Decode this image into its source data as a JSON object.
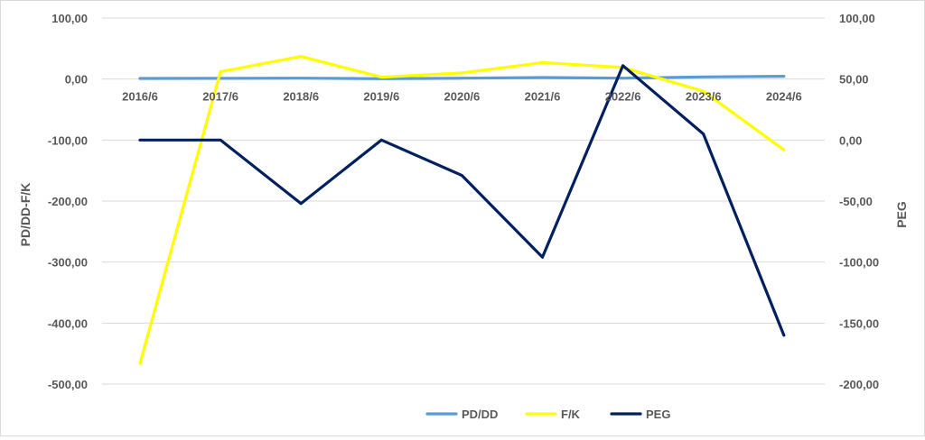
{
  "chart_data": {
    "type": "line",
    "categories": [
      "2016/6",
      "2017/6",
      "2018/6",
      "2019/6",
      "2020/6",
      "2021/6",
      "2022/6",
      "2023/6",
      "2024/6"
    ],
    "left_axis": {
      "label": "PD/DD-F/K",
      "range": [
        -500,
        100
      ],
      "ticks": [
        "100,00",
        "0,00",
        "-100,00",
        "-200,00",
        "-300,00",
        "-400,00",
        "-500,00"
      ],
      "tick_values": [
        100,
        0,
        -100,
        -200,
        -300,
        -400,
        -500
      ]
    },
    "right_axis": {
      "label": "PEG",
      "range": [
        -200,
        100
      ],
      "ticks": [
        "100,00",
        "50,00",
        "0,00",
        "-50,00",
        "-100,00",
        "-150,00",
        "-200,00"
      ],
      "tick_values": [
        100,
        50,
        0,
        -50,
        -100,
        -150,
        -200
      ]
    },
    "series": [
      {
        "name": "PD/DD",
        "axis": "left",
        "color": "#5b9bd5",
        "values": [
          1,
          1.2,
          1.5,
          0.5,
          1.5,
          2.5,
          1.5,
          3.5,
          4.5
        ]
      },
      {
        "name": "F/K",
        "axis": "left",
        "color": "#ffff00",
        "values": [
          -466,
          12,
          37,
          3,
          10,
          27,
          19,
          -20,
          -116
        ]
      },
      {
        "name": "PEG",
        "axis": "right",
        "color": "#002060",
        "values": [
          0,
          0,
          -52,
          0,
          -29,
          -96,
          61,
          5,
          -160
        ]
      }
    ],
    "gridlines": true,
    "legend_position": "bottom"
  }
}
